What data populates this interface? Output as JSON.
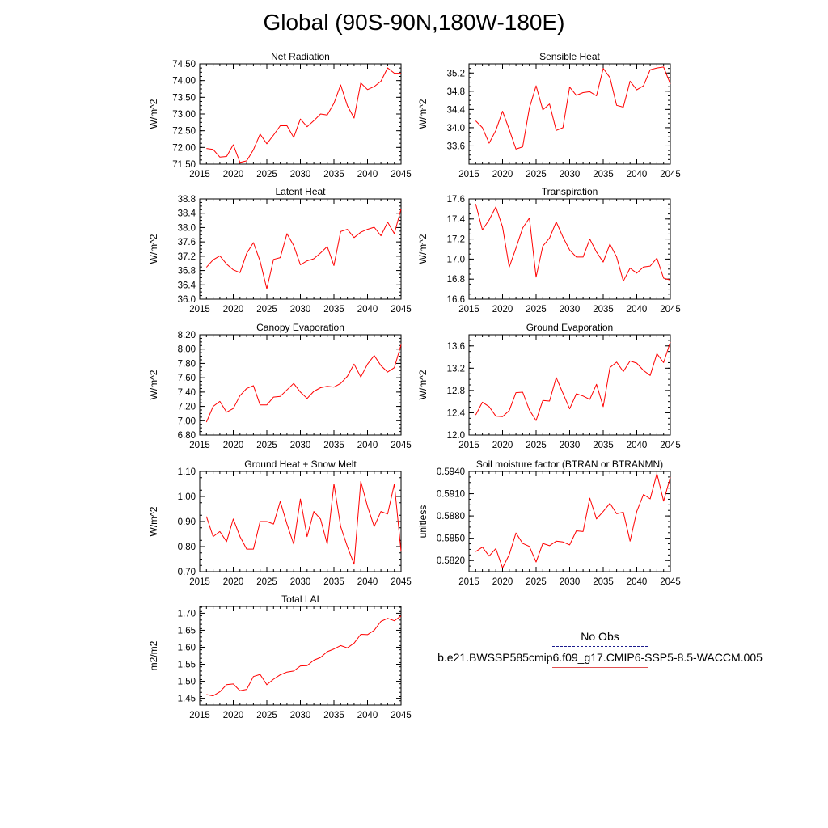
{
  "title": "Global (90S-90N,180W-180E)",
  "legend": {
    "obs_label": "No Obs",
    "obs_color": "#1a1a8c",
    "model_label": "b.e21.BWSSP585cmip6.f09_g17.CMIP6-SSP5-8.5-WACCM.005",
    "model_color": "#ff0000"
  },
  "chart_data": [
    {
      "type": "line",
      "panel": "top-left",
      "title": "Net Radiation",
      "ylabel": "W/m^2",
      "xlabel": "",
      "xlim": [
        2015,
        2045
      ],
      "ylim": [
        71.5,
        74.5
      ],
      "xticks": [
        "2015",
        "2020",
        "2025",
        "2030",
        "2035",
        "2040",
        "2045"
      ],
      "yticks": [
        "71.50",
        "72.00",
        "72.50",
        "73.00",
        "73.50",
        "74.00",
        "74.50"
      ],
      "x": [
        2016,
        2017,
        2018,
        2019,
        2020,
        2021,
        2022,
        2023,
        2024,
        2025,
        2026,
        2027,
        2028,
        2029,
        2030,
        2031,
        2032,
        2033,
        2034,
        2035,
        2036,
        2037,
        2038,
        2039,
        2040,
        2041,
        2042,
        2043,
        2044,
        2045
      ],
      "series": [
        {
          "name": "b.e21.BWSSP585cmip6.f09_g17.CMIP6-SSP5-8.5-WACCM.005",
          "values": [
            71.97,
            71.94,
            71.71,
            71.73,
            72.08,
            71.55,
            71.6,
            71.93,
            72.4,
            72.11,
            72.37,
            72.65,
            72.65,
            72.3,
            72.85,
            72.62,
            72.8,
            73.0,
            72.97,
            73.32,
            73.87,
            73.25,
            72.88,
            73.93,
            73.73,
            73.82,
            73.98,
            74.38,
            74.22,
            74.22
          ]
        }
      ]
    },
    {
      "type": "line",
      "panel": "top-right",
      "title": "Sensible Heat",
      "ylabel": "W/m^2",
      "xlabel": "",
      "xlim": [
        2015,
        2045
      ],
      "ylim": [
        33.2,
        35.4
      ],
      "xticks": [
        "2015",
        "2020",
        "2025",
        "2030",
        "2035",
        "2040",
        "2045"
      ],
      "yticks": [
        "33.6",
        "34.0",
        "34.4",
        "34.8",
        "35.2"
      ],
      "x": [
        2016,
        2017,
        2018,
        2019,
        2020,
        2021,
        2022,
        2023,
        2024,
        2025,
        2026,
        2027,
        2028,
        2029,
        2030,
        2031,
        2032,
        2033,
        2034,
        2035,
        2036,
        2037,
        2038,
        2039,
        2040,
        2041,
        2042,
        2043,
        2044,
        2045
      ],
      "series": [
        {
          "name": "b.e21.BWSSP585cmip6.f09_g17.CMIP6-SSP5-8.5-WACCM.005",
          "values": [
            34.15,
            34.0,
            33.66,
            33.94,
            34.36,
            33.96,
            33.53,
            33.58,
            34.43,
            34.92,
            34.39,
            34.52,
            33.94,
            34.0,
            34.89,
            34.71,
            34.77,
            34.79,
            34.7,
            35.3,
            35.1,
            34.49,
            34.45,
            35.02,
            34.83,
            34.92,
            35.27,
            35.31,
            35.33,
            34.96
          ]
        }
      ]
    },
    {
      "type": "line",
      "panel": "row2-left",
      "title": "Latent Heat",
      "ylabel": "W/m^2",
      "xlabel": "",
      "xlim": [
        2015,
        2045
      ],
      "ylim": [
        36.0,
        38.8
      ],
      "xticks": [
        "2015",
        "2020",
        "2025",
        "2030",
        "2035",
        "2040",
        "2045"
      ],
      "yticks": [
        "36.0",
        "36.4",
        "36.8",
        "37.2",
        "37.6",
        "38.0",
        "38.4",
        "38.8"
      ],
      "x": [
        2016,
        2017,
        2018,
        2019,
        2020,
        2021,
        2022,
        2023,
        2024,
        2025,
        2026,
        2027,
        2028,
        2029,
        2030,
        2031,
        2032,
        2033,
        2034,
        2035,
        2036,
        2037,
        2038,
        2039,
        2040,
        2041,
        2042,
        2043,
        2044,
        2045
      ],
      "series": [
        {
          "name": "b.e21.BWSSP585cmip6.f09_g17.CMIP6-SSP5-8.5-WACCM.005",
          "values": [
            36.89,
            37.1,
            37.21,
            36.98,
            36.82,
            36.74,
            37.28,
            37.58,
            37.06,
            36.29,
            37.11,
            37.16,
            37.83,
            37.5,
            36.96,
            37.07,
            37.13,
            37.29,
            37.47,
            36.94,
            37.89,
            37.95,
            37.72,
            37.87,
            37.95,
            38.01,
            37.77,
            38.15,
            37.83,
            38.52
          ]
        }
      ]
    },
    {
      "type": "line",
      "panel": "row2-right",
      "title": "Transpiration",
      "ylabel": "W/m^2",
      "xlabel": "",
      "xlim": [
        2015,
        2045
      ],
      "ylim": [
        16.6,
        17.6
      ],
      "xticks": [
        "2015",
        "2020",
        "2025",
        "2030",
        "2035",
        "2040",
        "2045"
      ],
      "yticks": [
        "16.6",
        "16.8",
        "17.0",
        "17.2",
        "17.4",
        "17.6"
      ],
      "x": [
        2016,
        2017,
        2018,
        2019,
        2020,
        2021,
        2022,
        2023,
        2024,
        2025,
        2026,
        2027,
        2028,
        2029,
        2030,
        2031,
        2032,
        2033,
        2034,
        2035,
        2036,
        2037,
        2038,
        2039,
        2040,
        2041,
        2042,
        2043,
        2044,
        2045
      ],
      "series": [
        {
          "name": "b.e21.BWSSP585cmip6.f09_g17.CMIP6-SSP5-8.5-WACCM.005",
          "values": [
            17.55,
            17.29,
            17.39,
            17.52,
            17.32,
            16.92,
            17.11,
            17.31,
            17.41,
            16.82,
            17.13,
            17.21,
            17.37,
            17.22,
            17.09,
            17.02,
            17.02,
            17.2,
            17.07,
            16.97,
            17.15,
            17.02,
            16.78,
            16.91,
            16.86,
            16.92,
            16.93,
            17.01,
            16.81,
            16.79
          ]
        }
      ]
    },
    {
      "type": "line",
      "panel": "row3-left",
      "title": "Canopy Evaporation",
      "ylabel": "W/m^2",
      "xlabel": "",
      "xlim": [
        2015,
        2045
      ],
      "ylim": [
        6.8,
        8.2
      ],
      "xticks": [
        "2015",
        "2020",
        "2025",
        "2030",
        "2035",
        "2040",
        "2045"
      ],
      "yticks": [
        "6.80",
        "7.00",
        "7.20",
        "7.40",
        "7.60",
        "7.80",
        "8.00",
        "8.20"
      ],
      "x": [
        2016,
        2017,
        2018,
        2019,
        2020,
        2021,
        2022,
        2023,
        2024,
        2025,
        2026,
        2027,
        2028,
        2029,
        2030,
        2031,
        2032,
        2033,
        2034,
        2035,
        2036,
        2037,
        2038,
        2039,
        2040,
        2041,
        2042,
        2043,
        2044,
        2045
      ],
      "series": [
        {
          "name": "b.e21.BWSSP585cmip6.f09_g17.CMIP6-SSP5-8.5-WACCM.005",
          "values": [
            6.98,
            7.2,
            7.27,
            7.12,
            7.17,
            7.35,
            7.45,
            7.49,
            7.22,
            7.22,
            7.33,
            7.34,
            7.43,
            7.52,
            7.4,
            7.31,
            7.41,
            7.46,
            7.48,
            7.47,
            7.52,
            7.62,
            7.79,
            7.61,
            7.79,
            7.91,
            7.77,
            7.68,
            7.74,
            8.06
          ]
        }
      ]
    },
    {
      "type": "line",
      "panel": "row3-right",
      "title": "Ground Evaporation",
      "ylabel": "W/m^2",
      "xlabel": "",
      "xlim": [
        2015,
        2045
      ],
      "ylim": [
        12.0,
        13.8
      ],
      "xticks": [
        "2015",
        "2020",
        "2025",
        "2030",
        "2035",
        "2040",
        "2045"
      ],
      "yticks": [
        "12.0",
        "12.4",
        "12.8",
        "13.2",
        "13.6"
      ],
      "x": [
        2016,
        2017,
        2018,
        2019,
        2020,
        2021,
        2022,
        2023,
        2024,
        2025,
        2026,
        2027,
        2028,
        2029,
        2030,
        2031,
        2032,
        2033,
        2034,
        2035,
        2036,
        2037,
        2038,
        2039,
        2040,
        2041,
        2042,
        2043,
        2044,
        2045
      ],
      "series": [
        {
          "name": "b.e21.BWSSP585cmip6.f09_g17.CMIP6-SSP5-8.5-WACCM.005",
          "values": [
            12.36,
            12.59,
            12.51,
            12.34,
            12.33,
            12.44,
            12.76,
            12.77,
            12.45,
            12.26,
            12.62,
            12.61,
            13.03,
            12.75,
            12.47,
            12.74,
            12.7,
            12.64,
            12.91,
            12.51,
            13.21,
            13.31,
            13.14,
            13.33,
            13.29,
            13.16,
            13.07,
            13.46,
            13.3,
            13.67
          ]
        }
      ]
    },
    {
      "type": "line",
      "panel": "row4-left",
      "title": "Ground Heat + Snow Melt",
      "ylabel": "W/m^2",
      "xlabel": "",
      "xlim": [
        2015,
        2045
      ],
      "ylim": [
        0.7,
        1.1
      ],
      "xticks": [
        "2015",
        "2020",
        "2025",
        "2030",
        "2035",
        "2040",
        "2045"
      ],
      "yticks": [
        "0.70",
        "0.80",
        "0.90",
        "1.00",
        "1.10"
      ],
      "x": [
        2016,
        2017,
        2018,
        2019,
        2020,
        2021,
        2022,
        2023,
        2024,
        2025,
        2026,
        2027,
        2028,
        2029,
        2030,
        2031,
        2032,
        2033,
        2034,
        2035,
        2036,
        2037,
        2038,
        2039,
        2040,
        2041,
        2042,
        2043,
        2044,
        2045
      ],
      "series": [
        {
          "name": "b.e21.BWSSP585cmip6.f09_g17.CMIP6-SSP5-8.5-WACCM.005",
          "values": [
            0.92,
            0.84,
            0.86,
            0.82,
            0.91,
            0.84,
            0.79,
            0.79,
            0.9,
            0.9,
            0.89,
            0.98,
            0.89,
            0.81,
            0.99,
            0.84,
            0.94,
            0.91,
            0.81,
            1.05,
            0.88,
            0.8,
            0.73,
            1.06,
            0.96,
            0.88,
            0.94,
            0.93,
            1.05,
            0.78
          ]
        }
      ]
    },
    {
      "type": "line",
      "panel": "row4-right",
      "title": "Soil moisture factor (BTRAN or BTRANMN)",
      "ylabel": "unitless",
      "xlabel": "",
      "xlim": [
        2015,
        2045
      ],
      "ylim": [
        0.5805,
        0.594
      ],
      "xticks": [
        "2015",
        "2020",
        "2025",
        "2030",
        "2035",
        "2040",
        "2045"
      ],
      "yticks": [
        "0.5820",
        "0.5850",
        "0.5880",
        "0.5910",
        "0.5940"
      ],
      "x": [
        2016,
        2017,
        2018,
        2019,
        2020,
        2021,
        2022,
        2023,
        2024,
        2025,
        2026,
        2027,
        2028,
        2029,
        2030,
        2031,
        2032,
        2033,
        2034,
        2035,
        2036,
        2037,
        2038,
        2039,
        2040,
        2041,
        2042,
        2043,
        2044,
        2045
      ],
      "series": [
        {
          "name": "b.e21.BWSSP585cmip6.f09_g17.CMIP6-SSP5-8.5-WACCM.005",
          "values": [
            0.5832,
            0.5838,
            0.5826,
            0.5836,
            0.581,
            0.5828,
            0.5857,
            0.5843,
            0.5839,
            0.5818,
            0.5843,
            0.584,
            0.5846,
            0.5845,
            0.5841,
            0.586,
            0.5859,
            0.5904,
            0.5876,
            0.5886,
            0.5897,
            0.5883,
            0.5885,
            0.5846,
            0.5886,
            0.5909,
            0.5903,
            0.5937,
            0.59,
            0.5932
          ]
        }
      ]
    },
    {
      "type": "line",
      "panel": "row5-left",
      "title": "Total LAI",
      "ylabel": "m2/m2",
      "xlabel": "",
      "xlim": [
        2015,
        2045
      ],
      "ylim": [
        1.43,
        1.72
      ],
      "xticks": [
        "2015",
        "2020",
        "2025",
        "2030",
        "2035",
        "2040",
        "2045"
      ],
      "yticks": [
        "1.45",
        "1.50",
        "1.55",
        "1.60",
        "1.65",
        "1.70"
      ],
      "x": [
        2016,
        2017,
        2018,
        2019,
        2020,
        2021,
        2022,
        2023,
        2024,
        2025,
        2026,
        2027,
        2028,
        2029,
        2030,
        2031,
        2032,
        2033,
        2034,
        2035,
        2036,
        2037,
        2038,
        2039,
        2040,
        2041,
        2042,
        2043,
        2044,
        2045
      ],
      "series": [
        {
          "name": "b.e21.BWSSP585cmip6.f09_g17.CMIP6-SSP5-8.5-WACCM.005",
          "values": [
            1.461,
            1.457,
            1.469,
            1.49,
            1.492,
            1.472,
            1.476,
            1.514,
            1.52,
            1.49,
            1.506,
            1.519,
            1.527,
            1.53,
            1.545,
            1.546,
            1.562,
            1.57,
            1.587,
            1.595,
            1.605,
            1.598,
            1.612,
            1.638,
            1.637,
            1.65,
            1.676,
            1.685,
            1.678,
            1.692
          ]
        }
      ]
    }
  ]
}
